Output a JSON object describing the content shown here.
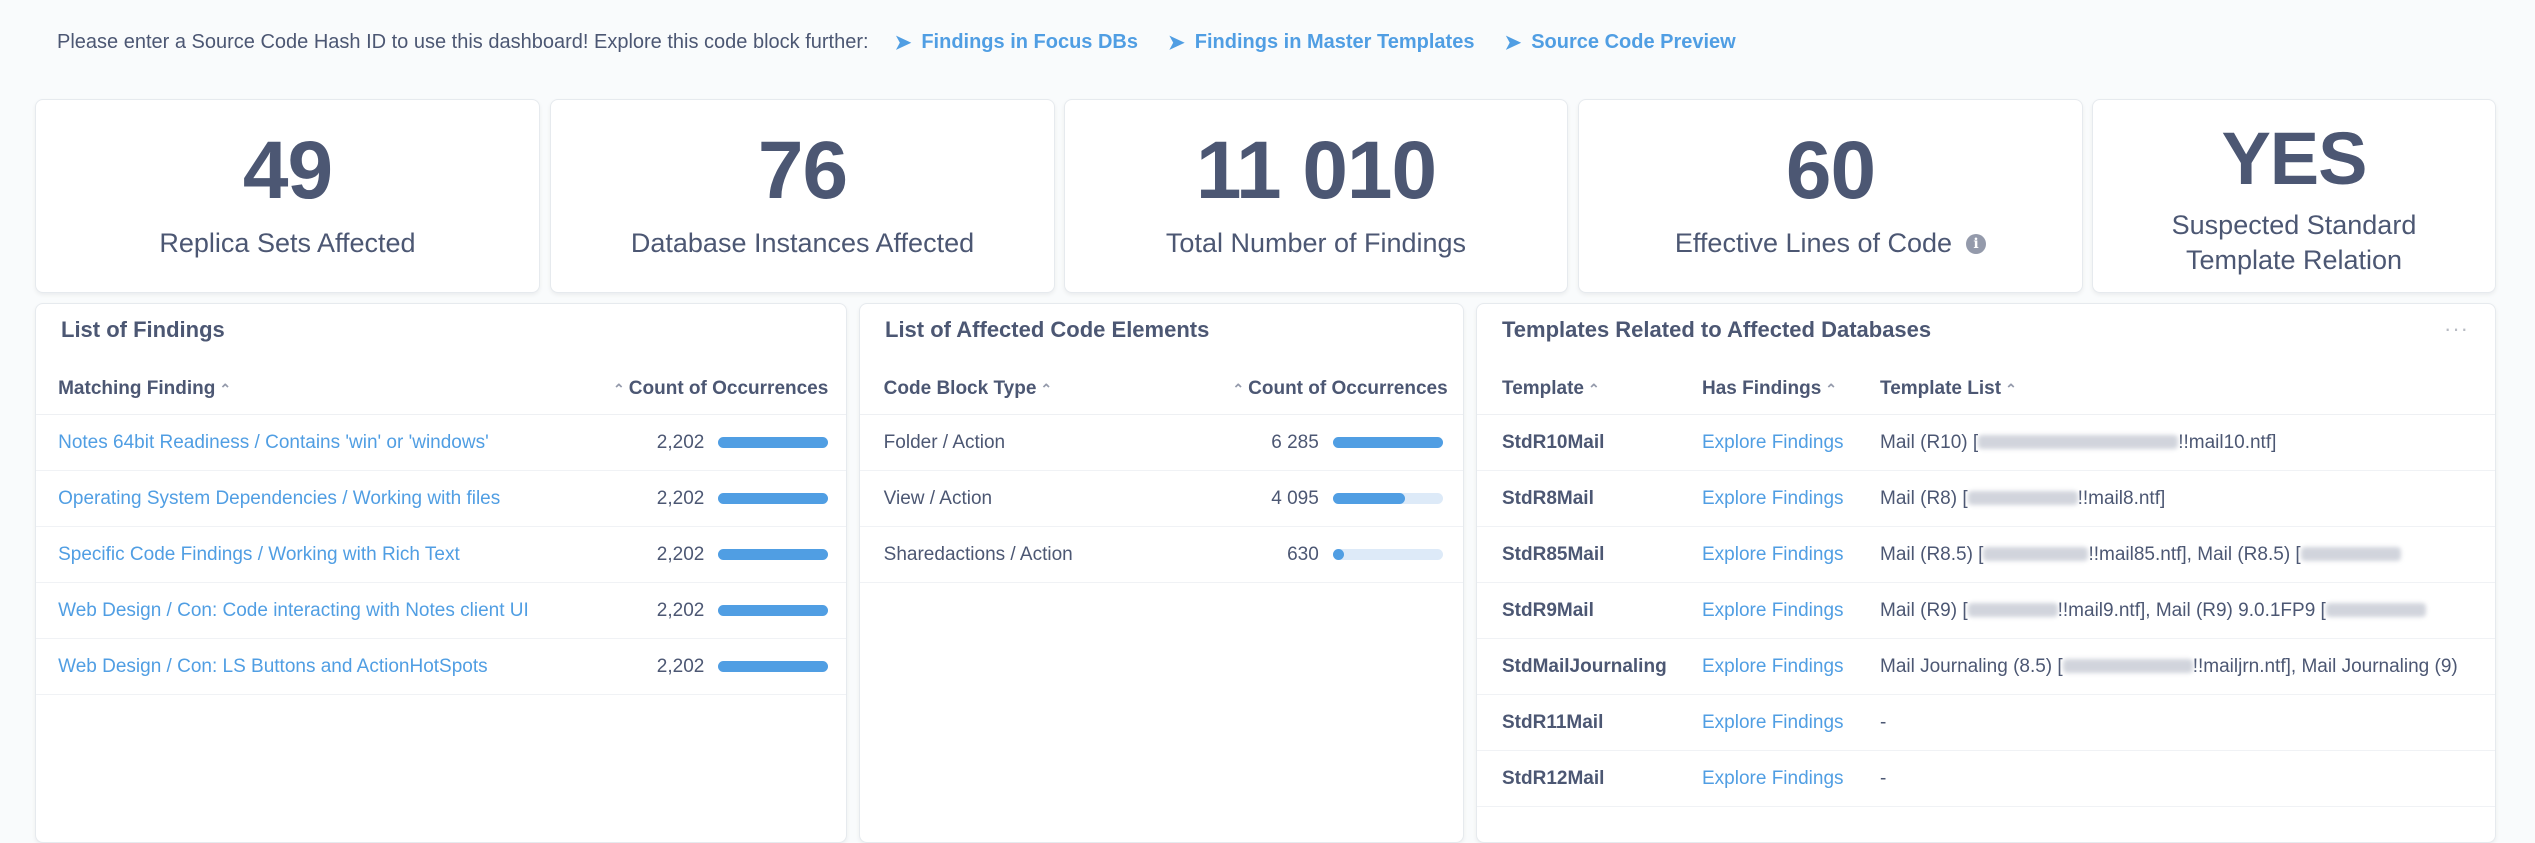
{
  "topbar": {
    "intro": "Please enter a Source Code Hash ID to use this dashboard!  Explore this code block further:",
    "links": [
      {
        "label": "Findings in Focus DBs"
      },
      {
        "label": "Findings in Master Templates"
      },
      {
        "label": "Source Code Preview"
      }
    ]
  },
  "kpis": [
    {
      "value": "49",
      "label": "Replica Sets Affected"
    },
    {
      "value": "76",
      "label": "Database Instances Affected"
    },
    {
      "value": "11 010",
      "label": "Total Number of Findings"
    },
    {
      "value": "60",
      "label": "Effective Lines of Code"
    },
    {
      "value": "YES",
      "label": "Suspected Standard Template Relation"
    }
  ],
  "findings": {
    "title": "List of Findings",
    "col_finding": "Matching Finding",
    "col_count": "Count of Occurrences",
    "rows": [
      {
        "finding": "Notes 64bit Readiness / Contains 'win' or 'windows'",
        "count": "2,202",
        "fraction": 1.0
      },
      {
        "finding": "Operating System Dependencies / Working with files",
        "count": "2,202",
        "fraction": 1.0
      },
      {
        "finding": "Specific Code Findings / Working with Rich Text",
        "count": "2,202",
        "fraction": 1.0
      },
      {
        "finding": "Web Design / Con: Code interacting with Notes client UI",
        "count": "2,202",
        "fraction": 1.0
      },
      {
        "finding": "Web Design / Con: LS Buttons and ActionHotSpots",
        "count": "2,202",
        "fraction": 1.0
      }
    ]
  },
  "elements": {
    "title": "List of Affected Code Elements",
    "col_type": "Code Block Type",
    "col_count": "Count of Occurrences",
    "rows": [
      {
        "type": "Folder / Action",
        "count": "6 285",
        "fraction": 1.0
      },
      {
        "type": "View / Action",
        "count": "4 095",
        "fraction": 0.652
      },
      {
        "type": "Sharedactions / Action",
        "count": "630",
        "fraction": 0.1
      }
    ]
  },
  "templates": {
    "title": "Templates Related to Affected Databases",
    "col_template": "Template",
    "col_has": "Has Findings",
    "col_list": "Template List",
    "rows": [
      {
        "template": "StdR10Mail",
        "has": "Explore Findings",
        "list": [
          "Mail (R10) [",
          "!!mail10.ntf]"
        ]
      },
      {
        "template": "StdR8Mail",
        "has": "Explore Findings",
        "list": [
          "Mail (R8) [",
          "!!mail8.ntf]"
        ]
      },
      {
        "template": "StdR85Mail",
        "has": "Explore Findings",
        "list": [
          "Mail (R8.5) [",
          "!!mail85.ntf], Mail (R8.5) ["
        ]
      },
      {
        "template": "StdR9Mail",
        "has": "Explore Findings",
        "list": [
          "Mail (R9) [",
          "!!mail9.ntf], Mail (R9) 9.0.1FP9 ["
        ]
      },
      {
        "template": "StdMailJournaling",
        "has": "Explore Findings",
        "list": [
          "Mail Journaling (8.5) [",
          "!!mailjrn.ntf], Mail Journaling (9)"
        ]
      },
      {
        "template": "StdR11Mail",
        "has": "Explore Findings",
        "list": [
          "-",
          ""
        ]
      },
      {
        "template": "StdR12Mail",
        "has": "Explore Findings",
        "list": [
          "-",
          ""
        ]
      }
    ]
  },
  "colors": {
    "accent": "#509ee3",
    "text": "#4c5773",
    "bar_bg": "#ddeaf8"
  }
}
